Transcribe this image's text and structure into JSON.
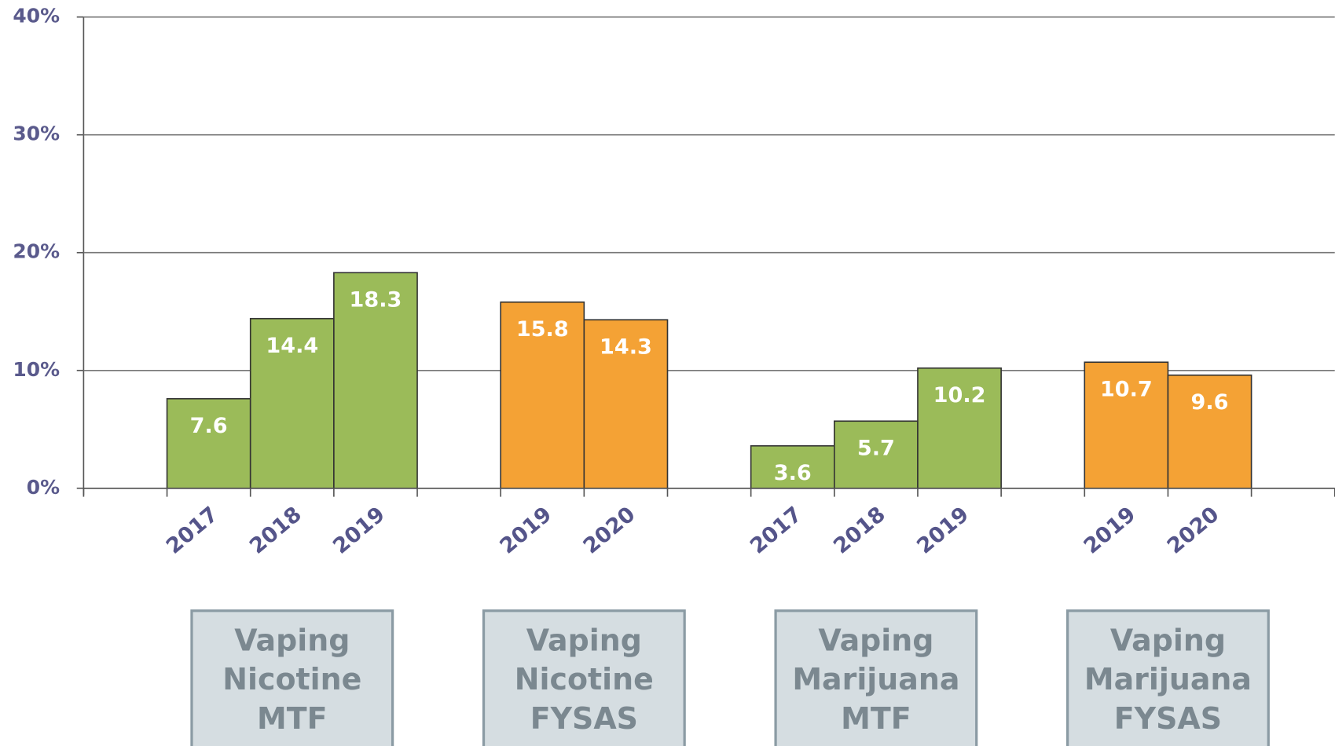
{
  "chart_data": {
    "type": "bar",
    "categories": [
      null,
      "2017",
      "2018",
      "2019",
      null,
      "2019",
      "2020",
      null,
      "2017",
      "2018",
      "2019",
      null,
      "2019",
      "2020",
      null
    ],
    "values": [
      null,
      7.6,
      14.4,
      18.3,
      null,
      15.8,
      14.3,
      null,
      3.6,
      5.7,
      10.2,
      null,
      10.7,
      9.6,
      null
    ],
    "colors": [
      null,
      "#9bbb59",
      "#9bbb59",
      "#9bbb59",
      null,
      "#f4a235",
      "#f4a235",
      null,
      "#9bbb59",
      "#9bbb59",
      "#9bbb59",
      null,
      "#f4a235",
      "#f4a235",
      null
    ],
    "groups": [
      [
        "Vaping",
        "Nicotine",
        "MTF"
      ],
      [
        "Vaping",
        "Nicotine",
        "FYSAS"
      ],
      [
        "Vaping",
        "Marijuana",
        "MTF"
      ],
      [
        "Vaping",
        "Marijuana",
        "FYSAS"
      ]
    ],
    "ylim": [
      0,
      40
    ],
    "yticks": [
      {
        "value": 0,
        "label": "0%"
      },
      {
        "value": 10,
        "label": "10%"
      },
      {
        "value": 20,
        "label": "20%"
      },
      {
        "value": 30,
        "label": "30%"
      },
      {
        "value": 40,
        "label": "40%"
      }
    ],
    "grid": true
  }
}
